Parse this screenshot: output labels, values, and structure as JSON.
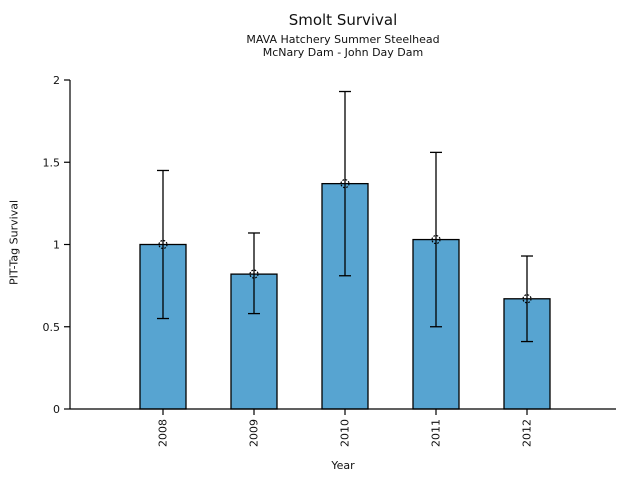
{
  "chart_data": {
    "type": "bar",
    "title": "Smolt Survival",
    "subtitle1": "MAVA Hatchery Summer Steelhead",
    "subtitle2": "McNary Dam - John Day Dam",
    "xlabel": "Year",
    "ylabel": "PIT-Tag Survival",
    "categories": [
      "2008",
      "2009",
      "2010",
      "2011",
      "2012"
    ],
    "values": [
      1.0,
      0.82,
      1.37,
      1.03,
      0.67
    ],
    "error_low": [
      0.55,
      0.58,
      0.81,
      0.5,
      0.41
    ],
    "error_high": [
      1.45,
      1.07,
      1.93,
      1.56,
      0.93
    ],
    "ylim": [
      0,
      2
    ],
    "yticks": [
      0,
      0.5,
      1,
      1.5,
      2
    ],
    "ytick_labels": [
      "0",
      "0.5",
      "1",
      "1.5",
      "2"
    ],
    "bar_color": "#57A4D1",
    "bar_edge_color": "#000000",
    "error_bar_color": "#000000",
    "marker": "open-circle-dotted",
    "grid": false,
    "legend": "none"
  }
}
